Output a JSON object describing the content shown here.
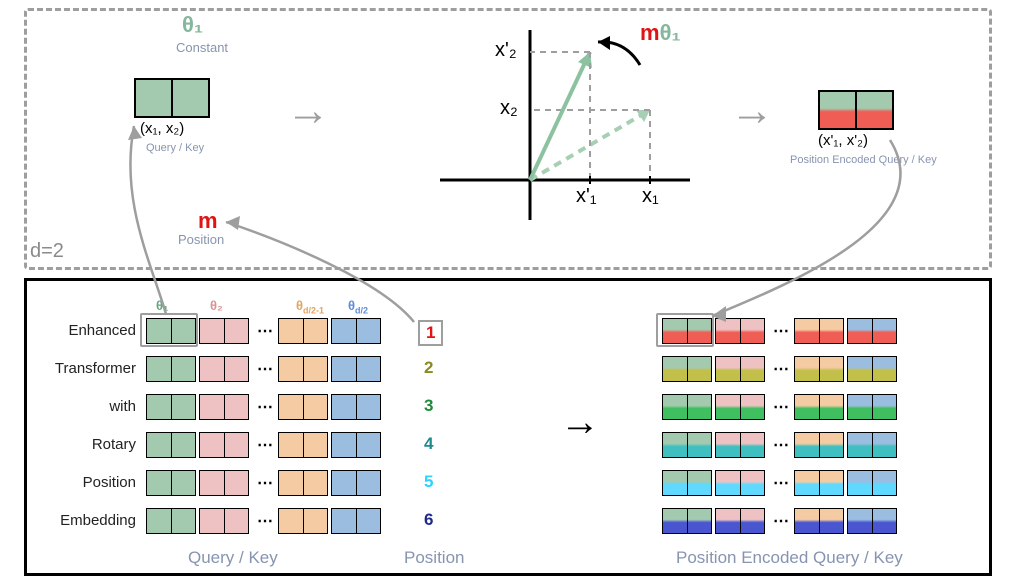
{
  "top": {
    "d_label": "d=2",
    "theta1": "θ₁",
    "constant": "Constant",
    "m": "m",
    "position": "Position",
    "mtheta_m": "m",
    "mtheta_theta": "θ₁",
    "qk_caption": "(x₁, x₂)",
    "qk_sub": "Query / Key",
    "enc_caption": "(x'₁, x'₂)",
    "enc_sub": "Position Encoded Query / Key",
    "axis_x2p": "x'₂",
    "axis_x2": "x₂",
    "axis_x1p": "x'₁",
    "axis_x1": "x₁"
  },
  "palette": {
    "green": "#a3caae",
    "pink": "#eec2c2",
    "peach": "#f4cba2",
    "blue": "#9bbde0",
    "red": "#ef5d55",
    "olive": "#8a8a1f",
    "dgreen": "#1f8a3a",
    "teal": "#1f8a8a",
    "cyan": "#2ad4ff",
    "navy": "#1f2a8a"
  },
  "theta_headers": [
    {
      "text": "θ₁",
      "color": "#5fa77d"
    },
    {
      "text": "θ₂",
      "color": "#d99393"
    },
    {
      "text": "θ_{d/2-1}",
      "color": "#e2a55f",
      "raw": "θd/2-1"
    },
    {
      "text": "θ_{d/2}",
      "color": "#5f8cd9",
      "raw": "θd/2"
    }
  ],
  "rows": [
    {
      "label": "Enhanced",
      "pos": "1",
      "pos_color": "#e01414",
      "tint": "#ef5d55"
    },
    {
      "label": "Transformer",
      "pos": "2",
      "pos_color": "#8a8a1f",
      "tint": "#c2c04a"
    },
    {
      "label": "with",
      "pos": "3",
      "pos_color": "#1f8a3a",
      "tint": "#3fbf5f"
    },
    {
      "label": "Rotary",
      "pos": "4",
      "pos_color": "#1f8a8a",
      "tint": "#3fbfbf"
    },
    {
      "label": "Position",
      "pos": "5",
      "pos_color": "#2ad4ff",
      "tint": "#5fd9ff"
    },
    {
      "label": "Embedding",
      "pos": "6",
      "pos_color": "#1f2a8a",
      "tint": "#4a56d0"
    }
  ],
  "headers": {
    "qk": "Query / Key",
    "pos": "Position",
    "enc": "Position Encoded Query / Key"
  }
}
